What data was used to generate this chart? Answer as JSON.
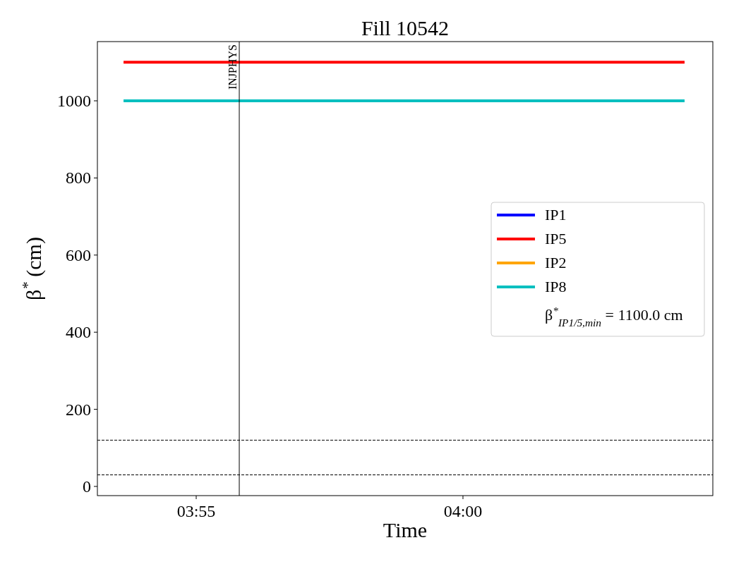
{
  "chart_data": {
    "type": "line",
    "title": "Fill 10542",
    "xlabel": "Time",
    "ylabel": "β$^{*}$ (cm)",
    "xlim": [
      3.8858,
      4.07805
    ],
    "xticks": [
      {
        "value": 3.9166667,
        "label": "03:55"
      },
      {
        "value": 4.0,
        "label": "04:00"
      }
    ],
    "ylim": [
      -23.8,
      1153.6
    ],
    "yticks": [
      0,
      200,
      400,
      600,
      800,
      1000
    ],
    "x": [
      3.89397,
      4.06922
    ],
    "series": [
      {
        "name": "IP1",
        "color": "#0000ff",
        "values": [
          null,
          null
        ]
      },
      {
        "name": "IP5",
        "color": "#ff0000",
        "values": [
          1100,
          1100
        ]
      },
      {
        "name": "IP2",
        "color": "#ffa500",
        "values": [
          null,
          null
        ]
      },
      {
        "name": "IP8",
        "color": "#00bfbf",
        "values": [
          1000,
          1000
        ]
      }
    ],
    "ref_lines": [
      {
        "axis": "x",
        "value": 3.93012,
        "label": "INJPHYS",
        "color": "#000000",
        "line_style": "solid"
      },
      {
        "axis": "y",
        "value": 120,
        "color": "#000000",
        "line_style": "dashed"
      },
      {
        "axis": "y",
        "value": 30,
        "color": "#000000",
        "line_style": "dashed"
      }
    ],
    "annotations": [
      "β$^{*}$$_{IP1/5,min}$ = 1100.0 cm"
    ],
    "legend": "right"
  }
}
